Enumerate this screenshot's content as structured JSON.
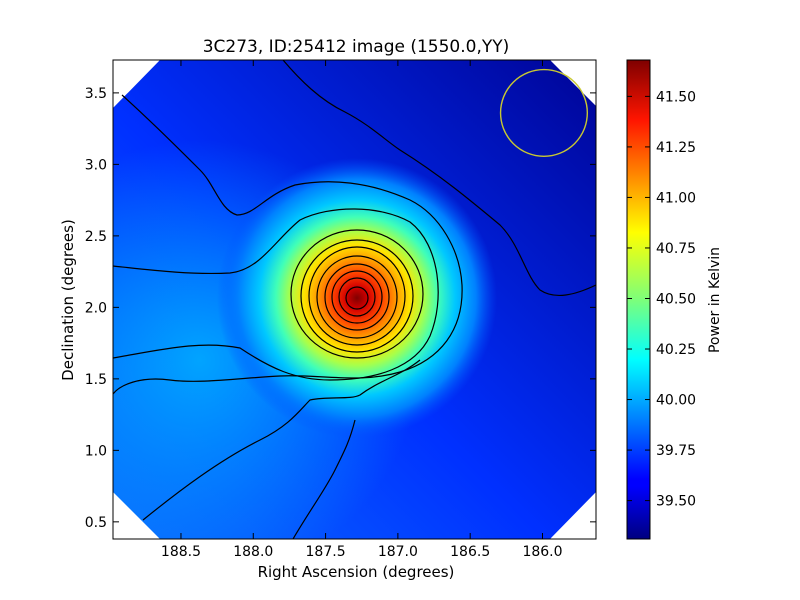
{
  "chart_data": {
    "type": "heatmap",
    "title": "3C273, ID:25412 image (1550.0,YY)",
    "xlabel": "Right Ascension (degrees)",
    "ylabel": "Declination (degrees)",
    "colorbar_label": "Power in Kelvin",
    "xlim": [
      188.97,
      185.63
    ],
    "ylim": [
      0.38,
      3.73
    ],
    "x_ticks": [
      188.5,
      188.0,
      187.5,
      187.0,
      186.5,
      186.0
    ],
    "x_tick_labels": [
      "188.5",
      "188.0",
      "187.5",
      "187.0",
      "186.5",
      "186.0"
    ],
    "y_ticks": [
      0.5,
      1.0,
      1.5,
      2.0,
      2.5,
      3.0,
      3.5
    ],
    "y_tick_labels": [
      "0.5",
      "1.0",
      "1.5",
      "2.0",
      "2.5",
      "3.0",
      "3.5"
    ],
    "colorbar_range": [
      39.31,
      41.68
    ],
    "colorbar_ticks": [
      39.5,
      39.75,
      40.0,
      40.25,
      40.5,
      40.75,
      41.0,
      41.25,
      41.5
    ],
    "colorbar_tick_labels": [
      "39.50",
      "39.75",
      "40.00",
      "40.25",
      "40.50",
      "40.75",
      "41.00",
      "41.25",
      "41.50"
    ],
    "colormap": "jet",
    "source_peak": {
      "ra": 187.28,
      "dec": 2.05,
      "value": 41.65
    },
    "beam_circle": {
      "ra": 185.99,
      "dec": 3.36,
      "radius_deg": 0.3,
      "color": "#c8c832"
    },
    "contour_color": "#000000",
    "grid": false
  }
}
